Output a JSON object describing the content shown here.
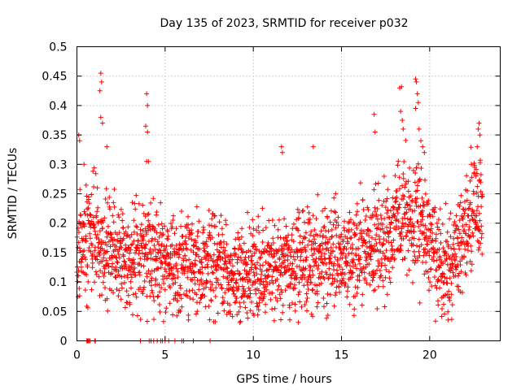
{
  "chart_data": {
    "type": "scatter",
    "title": "Day 135 of 2023, SRMTID for receiver p032",
    "xlabel": "GPS time / hours",
    "ylabel": "SRMTID / TECUs",
    "xlim": [
      0,
      24
    ],
    "ylim": [
      0,
      0.5
    ],
    "xticks": [
      0,
      5,
      10,
      15,
      20
    ],
    "xtick_labels": [
      "0",
      "5",
      "10",
      "15",
      "20"
    ],
    "yticks": [
      0,
      0.05,
      0.1,
      0.15,
      0.2,
      0.25,
      0.3,
      0.35,
      0.4,
      0.45,
      0.5
    ],
    "ytick_labels": [
      "0",
      "0.05",
      "0.1",
      "0.15",
      "0.2",
      "0.25",
      "0.3",
      "0.35",
      "0.4",
      "0.45",
      "0.5"
    ],
    "grid": true,
    "marker": "plus",
    "color": "#ff0000",
    "series": [
      {
        "name": "SRMTID",
        "trend_x": [
          0,
          0.5,
          1,
          1.5,
          2,
          3,
          4,
          5,
          6,
          7,
          8,
          9,
          10,
          11,
          12,
          13,
          14,
          15,
          16,
          17,
          18,
          18.5,
          19,
          19.5,
          20,
          20.5,
          21,
          21.5,
          22,
          22.5,
          23
        ],
        "trend_y": [
          0.14,
          0.18,
          0.16,
          0.17,
          0.15,
          0.14,
          0.15,
          0.12,
          0.13,
          0.13,
          0.13,
          0.12,
          0.11,
          0.13,
          0.13,
          0.14,
          0.14,
          0.15,
          0.15,
          0.16,
          0.18,
          0.22,
          0.2,
          0.21,
          0.17,
          0.14,
          0.12,
          0.14,
          0.18,
          0.22,
          0.25
        ],
        "spread": 0.045,
        "x_step": 0.01,
        "spikes": [
          {
            "x": 0.1,
            "y": 0.35
          },
          {
            "x": 0.15,
            "y": 0.34
          },
          {
            "x": 0.4,
            "y": 0.3
          },
          {
            "x": 1.35,
            "y": 0.455
          },
          {
            "x": 1.4,
            "y": 0.44
          },
          {
            "x": 1.3,
            "y": 0.425
          },
          {
            "x": 1.35,
            "y": 0.38
          },
          {
            "x": 1.45,
            "y": 0.37
          },
          {
            "x": 1.7,
            "y": 0.33
          },
          {
            "x": 3.95,
            "y": 0.42
          },
          {
            "x": 4.0,
            "y": 0.4
          },
          {
            "x": 3.9,
            "y": 0.365
          },
          {
            "x": 4.0,
            "y": 0.355
          },
          {
            "x": 3.95,
            "y": 0.305
          },
          {
            "x": 4.05,
            "y": 0.305
          },
          {
            "x": 11.6,
            "y": 0.33
          },
          {
            "x": 11.65,
            "y": 0.32
          },
          {
            "x": 13.4,
            "y": 0.33
          },
          {
            "x": 16.85,
            "y": 0.385
          },
          {
            "x": 16.9,
            "y": 0.355
          },
          {
            "x": 18.3,
            "y": 0.43
          },
          {
            "x": 18.4,
            "y": 0.432
          },
          {
            "x": 18.35,
            "y": 0.39
          },
          {
            "x": 18.45,
            "y": 0.375
          },
          {
            "x": 18.5,
            "y": 0.36
          },
          {
            "x": 19.2,
            "y": 0.445
          },
          {
            "x": 19.25,
            "y": 0.44
          },
          {
            "x": 19.3,
            "y": 0.42
          },
          {
            "x": 19.35,
            "y": 0.405
          },
          {
            "x": 19.2,
            "y": 0.395
          },
          {
            "x": 19.4,
            "y": 0.36
          },
          {
            "x": 19.5,
            "y": 0.34
          },
          {
            "x": 19.6,
            "y": 0.33
          },
          {
            "x": 19.7,
            "y": 0.32
          },
          {
            "x": 22.8,
            "y": 0.37
          },
          {
            "x": 22.75,
            "y": 0.36
          },
          {
            "x": 22.7,
            "y": 0.33
          },
          {
            "x": 22.85,
            "y": 0.35
          }
        ],
        "zero_x": [
          0.55,
          0.6,
          0.65,
          0.7,
          0.75,
          1.0,
          1.05,
          3.6,
          4.1,
          4.2,
          4.35,
          4.55,
          4.75,
          4.85,
          5.0,
          5.2,
          5.55,
          5.95,
          6.05,
          6.6,
          7.55
        ]
      }
    ]
  }
}
